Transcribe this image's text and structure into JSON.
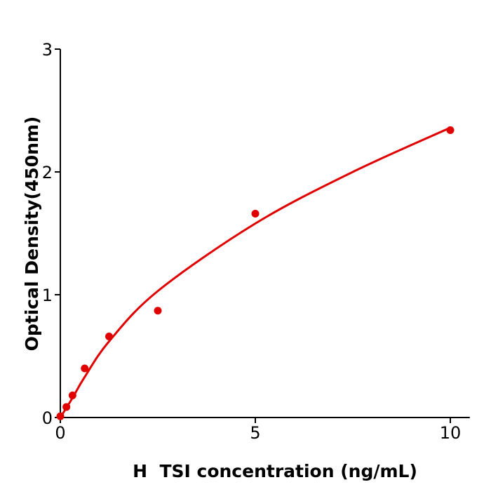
{
  "chart_data": {
    "type": "scatter",
    "title": "",
    "xlabel": "H  TSI concentration (ng/mL)",
    "ylabel": "Optical Density(450nm)",
    "xlim": [
      0,
      10.5
    ],
    "ylim": [
      0,
      3
    ],
    "xticks": [
      0,
      5,
      10
    ],
    "yticks": [
      0,
      1,
      2,
      3
    ],
    "grid": false,
    "color": "#e00000",
    "points": {
      "x": [
        0,
        0.156,
        0.3125,
        0.625,
        1.25,
        2.5,
        5,
        10
      ],
      "y": [
        0.01,
        0.086,
        0.18,
        0.4,
        0.66,
        0.87,
        1.66,
        2.34
      ]
    },
    "fit_curve": {
      "x": [
        0,
        0.3125,
        0.625,
        1.25,
        2.5,
        5,
        7.5,
        10
      ],
      "y": [
        0,
        0.16,
        0.33,
        0.62,
        1.03,
        1.58,
        2.0,
        2.36
      ]
    }
  }
}
